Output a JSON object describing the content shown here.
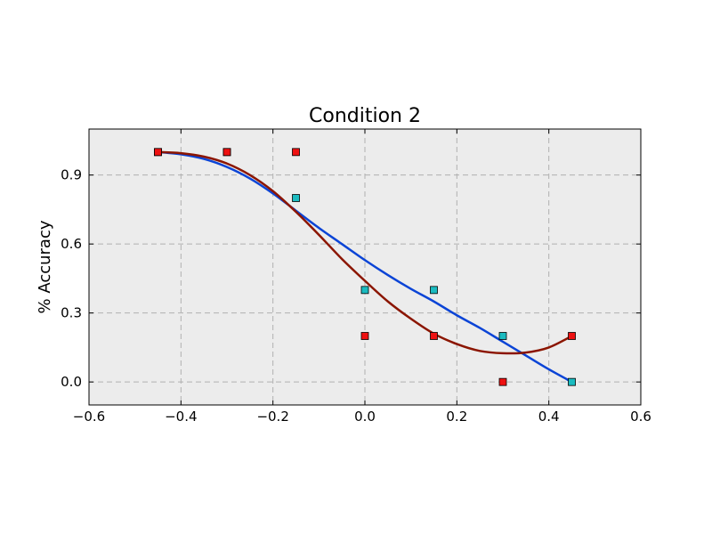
{
  "chart_data": {
    "type": "scatter",
    "title": "Condition 2",
    "xlabel": "",
    "ylabel": "% Accuracy",
    "xlim": [
      -0.6,
      0.6
    ],
    "ylim": [
      -0.1,
      1.1
    ],
    "xticks": [
      -0.6,
      -0.4,
      -0.2,
      0.0,
      0.2,
      0.4,
      0.6
    ],
    "xtick_labels": [
      "−0.6",
      "−0.4",
      "−0.2",
      "0.0",
      "0.2",
      "0.4",
      "0.6"
    ],
    "yticks": [
      0.0,
      0.3,
      0.6,
      0.9
    ],
    "ytick_labels": [
      "0.0",
      "0.3",
      "0.6",
      "0.9"
    ],
    "grid": true,
    "background": "#ececec",
    "series": [
      {
        "marker_color": "#1bbbc0",
        "line_color": "#0b44d6",
        "x": [
          -0.45,
          -0.3,
          -0.15,
          0.0,
          0.15,
          0.3,
          0.45
        ],
        "y": [
          1.0,
          1.0,
          0.8,
          0.4,
          0.4,
          0.2,
          0.0
        ],
        "fit": [
          [
            -0.45,
            1.0
          ],
          [
            -0.4,
            0.99
          ],
          [
            -0.35,
            0.97
          ],
          [
            -0.3,
            0.935
          ],
          [
            -0.25,
            0.885
          ],
          [
            -0.2,
            0.82
          ],
          [
            -0.15,
            0.745
          ],
          [
            -0.1,
            0.67
          ],
          [
            -0.05,
            0.6
          ],
          [
            0.0,
            0.53
          ],
          [
            0.05,
            0.465
          ],
          [
            0.1,
            0.405
          ],
          [
            0.15,
            0.35
          ],
          [
            0.2,
            0.29
          ],
          [
            0.25,
            0.235
          ],
          [
            0.3,
            0.175
          ],
          [
            0.35,
            0.115
          ],
          [
            0.4,
            0.055
          ],
          [
            0.45,
            0.0
          ]
        ]
      },
      {
        "marker_color": "#ee1111",
        "line_color": "#8b1500",
        "x": [
          -0.45,
          -0.3,
          -0.15,
          0.0,
          0.15,
          0.3,
          0.45
        ],
        "y": [
          1.0,
          1.0,
          1.0,
          0.2,
          0.2,
          0.0,
          0.2
        ],
        "fit": [
          [
            -0.45,
            1.0
          ],
          [
            -0.4,
            0.995
          ],
          [
            -0.35,
            0.98
          ],
          [
            -0.3,
            0.95
          ],
          [
            -0.25,
            0.9
          ],
          [
            -0.2,
            0.83
          ],
          [
            -0.15,
            0.74
          ],
          [
            -0.1,
            0.64
          ],
          [
            -0.05,
            0.535
          ],
          [
            0.0,
            0.44
          ],
          [
            0.05,
            0.35
          ],
          [
            0.1,
            0.275
          ],
          [
            0.15,
            0.21
          ],
          [
            0.2,
            0.165
          ],
          [
            0.25,
            0.135
          ],
          [
            0.3,
            0.125
          ],
          [
            0.35,
            0.128
          ],
          [
            0.4,
            0.15
          ],
          [
            0.45,
            0.2
          ]
        ]
      }
    ]
  }
}
